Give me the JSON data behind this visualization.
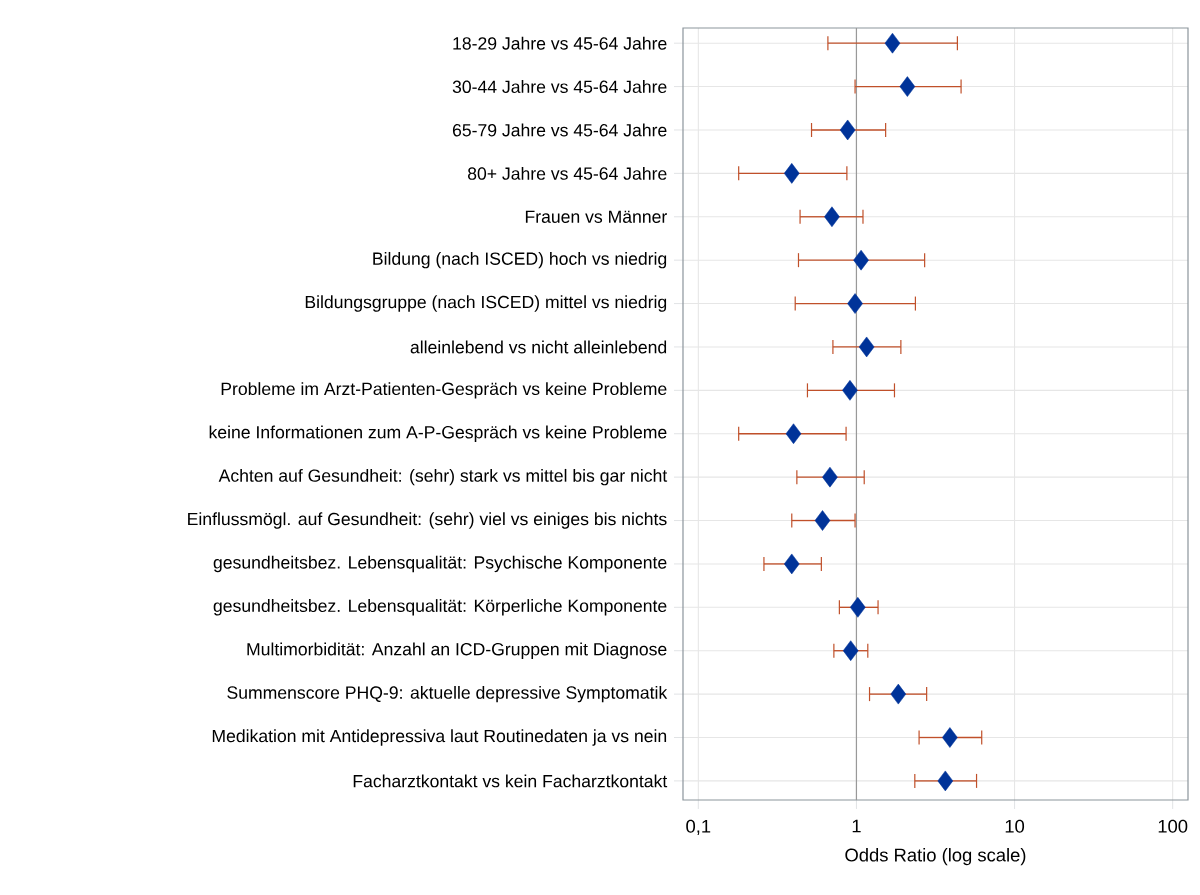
{
  "chart_data": {
    "type": "scatter",
    "orientation": "horizontal",
    "xlabel": "Odds Ratio (log scale)",
    "categories": [
      "18-29 Jahre vs 45-64 Jahre",
      "30-44 Jahre vs 45-64 Jahre",
      "65-79 Jahre vs 45-64 Jahre",
      "80+ Jahre vs 45-64 Jahre",
      "Frauen vs Männer",
      "Bildung (nach ISCED) hoch vs niedrig",
      "Bildungsgruppe (nach ISCED) mittel vs niedrig",
      "alleinlebend vs nicht alleinlebend",
      "Probleme im Arzt-Patienten-Gespräch vs keine Probleme",
      "keine Informationen zum A-P-Gespräch vs keine Probleme",
      "Achten auf Gesundheit: (sehr) stark vs mittel bis gar nicht",
      "Einflussmögl. auf Gesundheit: (sehr) viel vs einiges bis nichts",
      "gesundheitsbez. Lebensqualität: Psychische Komponente",
      "gesundheitsbez. Lebensqualität: Körperliche Komponente",
      "Multimorbidität: Anzahl an ICD-Gruppen mit Diagnose",
      "Summenscore PHQ-9: aktuelle depressive Symptomatik",
      "Medikation mit Antidepressiva laut Routinedaten ja vs nein",
      "Facharztkontakt vs kein Facharztkontakt"
    ],
    "series": [
      {
        "color": "#003399",
        "values": [
          1.69,
          2.1,
          0.88,
          0.39,
          0.7,
          1.07,
          0.98,
          1.16,
          0.91,
          0.4,
          0.68,
          0.61,
          0.39,
          1.02,
          0.92,
          1.84,
          3.9,
          3.65
        ],
        "errors": [
          [
            0.66,
            4.35
          ],
          [
            0.98,
            4.59
          ],
          [
            0.52,
            1.53
          ],
          [
            0.18,
            0.87
          ],
          [
            0.44,
            1.1
          ],
          [
            0.43,
            2.7
          ],
          [
            0.41,
            2.36
          ],
          [
            0.71,
            1.91
          ],
          [
            0.49,
            1.74
          ],
          [
            0.18,
            0.86
          ],
          [
            0.42,
            1.12
          ],
          [
            0.39,
            0.98
          ],
          [
            0.26,
            0.6
          ],
          [
            0.78,
            1.37
          ],
          [
            0.72,
            1.18
          ],
          [
            1.21,
            2.78
          ],
          [
            2.49,
            6.2
          ],
          [
            2.34,
            5.75
          ]
        ]
      }
    ],
    "xlim": [
      0.08,
      125
    ],
    "xticks": [
      {
        "value": 0.1,
        "label": "0,1"
      },
      1,
      10,
      100
    ],
    "log": "x",
    "grid": true,
    "marker": "diamond",
    "ref_lines": [
      {
        "axis": "x",
        "value": 1,
        "color": "#999999"
      }
    ]
  }
}
